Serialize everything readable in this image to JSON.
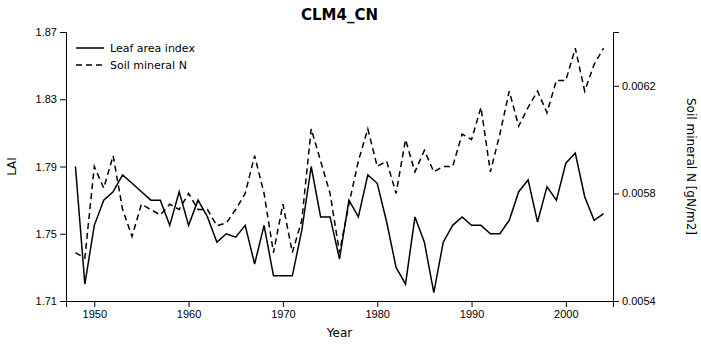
{
  "chart_data": {
    "type": "line",
    "title": "CLM4_CN",
    "xlabel": "Year",
    "ylabel": "LAI",
    "y2label": "Soil mineral N [gN/m2]",
    "x": [
      1948,
      1949,
      1950,
      1951,
      1952,
      1953,
      1954,
      1955,
      1956,
      1957,
      1958,
      1959,
      1960,
      1961,
      1962,
      1963,
      1964,
      1965,
      1966,
      1967,
      1968,
      1969,
      1970,
      1971,
      1972,
      1973,
      1974,
      1975,
      1976,
      1977,
      1978,
      1979,
      1980,
      1981,
      1982,
      1983,
      1984,
      1985,
      1986,
      1987,
      1988,
      1989,
      1990,
      1991,
      1992,
      1993,
      1994,
      1995,
      1996,
      1997,
      1998,
      1999,
      2000,
      2001,
      2002,
      2003,
      2004
    ],
    "series": [
      {
        "name": "Leaf area index",
        "color": "black",
        "line_style": "solid",
        "values": [
          1.79,
          1.72,
          1.755,
          1.77,
          1.775,
          1.785,
          1.78,
          1.775,
          1.77,
          1.77,
          1.755,
          1.775,
          1.755,
          1.77,
          1.76,
          1.745,
          1.75,
          1.748,
          1.755,
          1.732,
          1.755,
          1.725,
          1.725,
          1.725,
          1.752,
          1.79,
          1.76,
          1.76,
          1.735,
          1.77,
          1.76,
          1.785,
          1.78,
          1.757,
          1.73,
          1.72,
          1.76,
          1.745,
          1.715,
          1.745,
          1.755,
          1.76,
          1.755,
          1.755,
          1.75,
          1.75,
          1.758,
          1.775,
          1.782,
          1.757,
          1.778,
          1.77,
          1.792,
          1.798,
          1.772,
          1.758,
          1.762
        ]
      },
      {
        "name": "Soil mineral N",
        "color": "black",
        "line_style": "dashed",
        "axis": "y2",
        "values": [
          0.00558,
          0.00556,
          0.0059,
          0.00582,
          0.00594,
          0.00574,
          0.00564,
          0.00576,
          0.00574,
          0.00572,
          0.00576,
          0.00574,
          0.0058,
          0.00574,
          0.00574,
          0.00568,
          0.00569,
          0.00574,
          0.0058,
          0.00594,
          0.0058,
          0.00558,
          0.00576,
          0.00558,
          0.0057,
          0.00604,
          0.00592,
          0.0058,
          0.00558,
          0.00576,
          0.00592,
          0.00604,
          0.0059,
          0.00592,
          0.0058,
          0.006,
          0.00588,
          0.00596,
          0.00588,
          0.0059,
          0.0059,
          0.00602,
          0.006,
          0.00612,
          0.00588,
          0.00602,
          0.00618,
          0.00605,
          0.00612,
          0.00618,
          0.0061,
          0.00622,
          0.00622,
          0.00634,
          0.00618,
          0.00628,
          0.00634
        ]
      }
    ],
    "xlim": [
      1947,
      2005
    ],
    "xticks": [
      1950,
      1960,
      1970,
      1980,
      1990,
      2000
    ],
    "ylim": [
      1.71,
      1.87
    ],
    "yticks": [
      1.71,
      1.75,
      1.79,
      1.83,
      1.87
    ],
    "y2lim": [
      0.0054,
      0.0064
    ],
    "y2ticks": [
      0.0054,
      0.0058,
      0.0062
    ],
    "legend": "upper left",
    "grid": false
  }
}
